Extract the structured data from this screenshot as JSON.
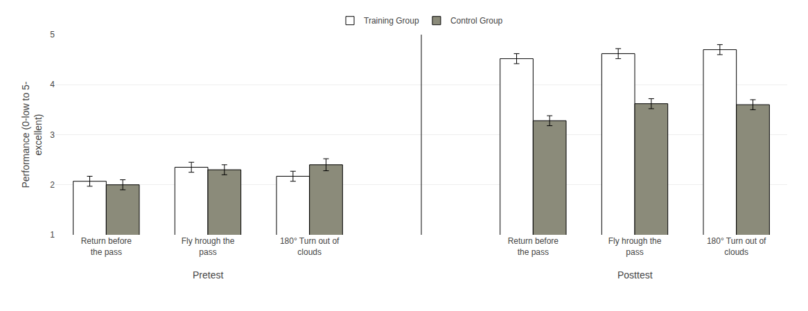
{
  "chart_data": {
    "type": "bar",
    "categories": [
      "Return before\nthe pass",
      "Fly hrough the\npass",
      "180° Turn out of\nclouds",
      "Return before\nthe pass",
      "Fly hrough the\npass",
      "180° Turn out of\nclouds"
    ],
    "annotations": [
      "Pretest",
      "Posttest"
    ],
    "series": [
      {
        "name": "Training Group",
        "color": "#FFFFFF",
        "values": [
          2.07,
          2.35,
          2.17,
          4.52,
          4.62,
          4.7
        ],
        "errors": [
          0.1,
          0.1,
          0.1,
          0.1,
          0.1,
          0.1
        ]
      },
      {
        "name": "Control Group",
        "color": "#8B8B7A",
        "values": [
          2.0,
          2.3,
          2.4,
          3.28,
          3.62,
          3.6
        ],
        "errors": [
          0.1,
          0.1,
          0.12,
          0.1,
          0.1,
          0.1
        ]
      }
    ],
    "ylabel": "Performance (0-low to 5-\nexcellent)",
    "ylim": [
      1,
      5
    ],
    "yticks": [
      1,
      2,
      3,
      4,
      5
    ],
    "grid": true,
    "legend": "upper center"
  }
}
